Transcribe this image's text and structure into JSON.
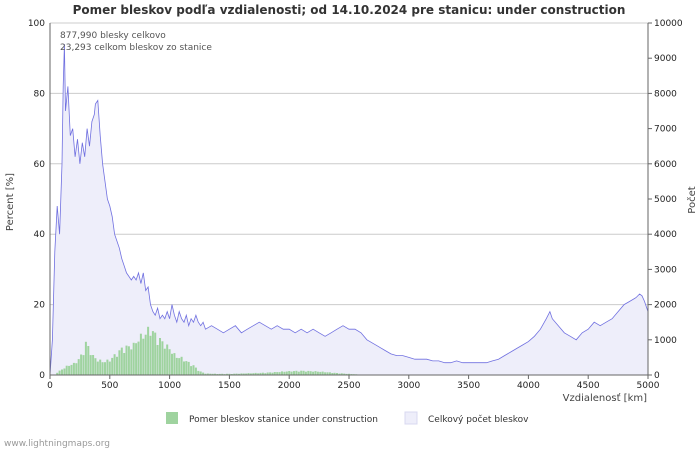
{
  "chart_data": {
    "type": "bar",
    "title": "Pomer bleskov podľa vzdialenosti; od 14.10.2024 pre stanicu: under construction",
    "xlabel": "Vzdialenosť   [km]",
    "ylabel_left": "Percent   [%]",
    "ylabel_right": "Počet",
    "xlim": [
      0,
      5000
    ],
    "ylim_left": [
      0,
      100
    ],
    "ylim_right": [
      0,
      10000
    ],
    "x_ticks": [
      "0",
      "500",
      "1000",
      "1500",
      "2000",
      "2500",
      "3000",
      "3500",
      "4000",
      "4500",
      "5000"
    ],
    "y_ticks_left": [
      "0",
      "20",
      "40",
      "60",
      "80",
      "100"
    ],
    "y_ticks_right": [
      "0",
      "1000",
      "2000",
      "3000",
      "4000",
      "5000",
      "6000",
      "7000",
      "8000",
      "9000",
      "10000"
    ],
    "grid": true,
    "annotations": [
      "877,990 blesky celkovo",
      "23,293 celkom bleskov zo stanice"
    ],
    "series": [
      {
        "name": "Pomer bleskov stanice under construction",
        "axis": "left",
        "style": "bars",
        "color": "#9fd39f",
        "points": [
          [
            50,
            0.5
          ],
          [
            100,
            1.5
          ],
          [
            150,
            2.5
          ],
          [
            200,
            3
          ],
          [
            250,
            4.5
          ],
          [
            280,
            6.5
          ],
          [
            300,
            8.5
          ],
          [
            330,
            7
          ],
          [
            360,
            5
          ],
          [
            400,
            4
          ],
          [
            450,
            3.5
          ],
          [
            500,
            4
          ],
          [
            550,
            5.5
          ],
          [
            600,
            7
          ],
          [
            650,
            7.5
          ],
          [
            700,
            8
          ],
          [
            750,
            10
          ],
          [
            800,
            11
          ],
          [
            830,
            12.5
          ],
          [
            860,
            11.5
          ],
          [
            900,
            10
          ],
          [
            950,
            8.5
          ],
          [
            1000,
            7
          ],
          [
            1050,
            5
          ],
          [
            1100,
            4.5
          ],
          [
            1150,
            3.5
          ],
          [
            1200,
            2.5
          ],
          [
            1250,
            1
          ],
          [
            1300,
            0.4
          ],
          [
            1400,
            0.3
          ],
          [
            1500,
            0.3
          ],
          [
            1600,
            0.4
          ],
          [
            1700,
            0.5
          ],
          [
            1800,
            0.6
          ],
          [
            1900,
            0.8
          ],
          [
            2000,
            1
          ],
          [
            2100,
            1.1
          ],
          [
            2200,
            1
          ],
          [
            2300,
            0.8
          ],
          [
            2400,
            0.5
          ],
          [
            2500,
            0.3
          ],
          [
            2600,
            0.1
          ],
          [
            2700,
            0
          ],
          [
            5000,
            0
          ]
        ]
      },
      {
        "name": "Celkový počet bleskov",
        "axis": "right",
        "style": "area",
        "color": "#7070e0",
        "fill": "#eeeefa",
        "points": [
          [
            0,
            0
          ],
          [
            20,
            1000
          ],
          [
            40,
            3500
          ],
          [
            60,
            4800
          ],
          [
            80,
            4000
          ],
          [
            100,
            6000
          ],
          [
            110,
            8200
          ],
          [
            120,
            9400
          ],
          [
            130,
            7500
          ],
          [
            150,
            8200
          ],
          [
            170,
            6800
          ],
          [
            190,
            7000
          ],
          [
            210,
            6200
          ],
          [
            230,
            6700
          ],
          [
            250,
            6000
          ],
          [
            270,
            6600
          ],
          [
            290,
            6200
          ],
          [
            310,
            7000
          ],
          [
            330,
            6500
          ],
          [
            350,
            7200
          ],
          [
            370,
            7400
          ],
          [
            380,
            7700
          ],
          [
            400,
            7800
          ],
          [
            420,
            6800
          ],
          [
            440,
            6000
          ],
          [
            460,
            5500
          ],
          [
            480,
            5000
          ],
          [
            500,
            4800
          ],
          [
            520,
            4500
          ],
          [
            540,
            4000
          ],
          [
            560,
            3800
          ],
          [
            580,
            3600
          ],
          [
            600,
            3300
          ],
          [
            620,
            3100
          ],
          [
            640,
            2900
          ],
          [
            660,
            2800
          ],
          [
            680,
            2700
          ],
          [
            700,
            2800
          ],
          [
            720,
            2700
          ],
          [
            740,
            2900
          ],
          [
            760,
            2600
          ],
          [
            780,
            2900
          ],
          [
            800,
            2400
          ],
          [
            820,
            2500
          ],
          [
            840,
            2000
          ],
          [
            860,
            1800
          ],
          [
            880,
            1700
          ],
          [
            900,
            1900
          ],
          [
            920,
            1600
          ],
          [
            940,
            1700
          ],
          [
            960,
            1600
          ],
          [
            980,
            1800
          ],
          [
            1000,
            1600
          ],
          [
            1020,
            2000
          ],
          [
            1040,
            1700
          ],
          [
            1060,
            1500
          ],
          [
            1080,
            1800
          ],
          [
            1100,
            1600
          ],
          [
            1120,
            1500
          ],
          [
            1140,
            1700
          ],
          [
            1160,
            1400
          ],
          [
            1180,
            1600
          ],
          [
            1200,
            1500
          ],
          [
            1220,
            1700
          ],
          [
            1240,
            1500
          ],
          [
            1260,
            1400
          ],
          [
            1280,
            1500
          ],
          [
            1300,
            1300
          ],
          [
            1350,
            1400
          ],
          [
            1400,
            1300
          ],
          [
            1450,
            1200
          ],
          [
            1500,
            1300
          ],
          [
            1550,
            1400
          ],
          [
            1600,
            1200
          ],
          [
            1650,
            1300
          ],
          [
            1700,
            1400
          ],
          [
            1750,
            1500
          ],
          [
            1800,
            1400
          ],
          [
            1850,
            1300
          ],
          [
            1900,
            1400
          ],
          [
            1950,
            1300
          ],
          [
            2000,
            1300
          ],
          [
            2050,
            1200
          ],
          [
            2100,
            1300
          ],
          [
            2150,
            1200
          ],
          [
            2200,
            1300
          ],
          [
            2250,
            1200
          ],
          [
            2300,
            1100
          ],
          [
            2350,
            1200
          ],
          [
            2400,
            1300
          ],
          [
            2450,
            1400
          ],
          [
            2500,
            1300
          ],
          [
            2550,
            1300
          ],
          [
            2600,
            1200
          ],
          [
            2650,
            1000
          ],
          [
            2700,
            900
          ],
          [
            2750,
            800
          ],
          [
            2800,
            700
          ],
          [
            2850,
            600
          ],
          [
            2900,
            550
          ],
          [
            2950,
            550
          ],
          [
            3000,
            500
          ],
          [
            3050,
            450
          ],
          [
            3100,
            450
          ],
          [
            3150,
            450
          ],
          [
            3200,
            400
          ],
          [
            3250,
            400
          ],
          [
            3300,
            350
          ],
          [
            3350,
            350
          ],
          [
            3400,
            400
          ],
          [
            3450,
            350
          ],
          [
            3500,
            350
          ],
          [
            3550,
            350
          ],
          [
            3600,
            350
          ],
          [
            3650,
            350
          ],
          [
            3700,
            400
          ],
          [
            3750,
            450
          ],
          [
            3800,
            550
          ],
          [
            3850,
            650
          ],
          [
            3900,
            750
          ],
          [
            3950,
            850
          ],
          [
            4000,
            950
          ],
          [
            4050,
            1100
          ],
          [
            4100,
            1300
          ],
          [
            4150,
            1600
          ],
          [
            4180,
            1800
          ],
          [
            4200,
            1600
          ],
          [
            4250,
            1400
          ],
          [
            4300,
            1200
          ],
          [
            4350,
            1100
          ],
          [
            4400,
            1000
          ],
          [
            4450,
            1200
          ],
          [
            4500,
            1300
          ],
          [
            4550,
            1500
          ],
          [
            4600,
            1400
          ],
          [
            4650,
            1500
          ],
          [
            4700,
            1600
          ],
          [
            4750,
            1800
          ],
          [
            4800,
            2000
          ],
          [
            4850,
            2100
          ],
          [
            4900,
            2200
          ],
          [
            4930,
            2300
          ],
          [
            4950,
            2250
          ],
          [
            4970,
            2100
          ],
          [
            5000,
            1800
          ]
        ]
      }
    ]
  },
  "footer": {
    "credit": "www.lightningmaps.org"
  }
}
